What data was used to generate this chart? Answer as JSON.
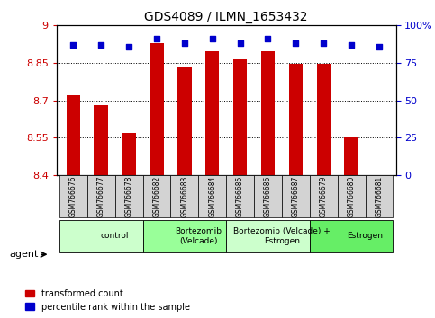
{
  "title": "GDS4089 / ILMN_1653432",
  "samples": [
    "GSM766676",
    "GSM766677",
    "GSM766678",
    "GSM766682",
    "GSM766683",
    "GSM766684",
    "GSM766685",
    "GSM766686",
    "GSM766687",
    "GSM766679",
    "GSM766680",
    "GSM766681"
  ],
  "bar_values": [
    8.72,
    8.68,
    8.57,
    8.93,
    8.83,
    8.895,
    8.865,
    8.895,
    8.845,
    8.845,
    8.555,
    8.4
  ],
  "dot_values": [
    87,
    87,
    86,
    91,
    88,
    91,
    88,
    91,
    88,
    88,
    87,
    86
  ],
  "ylim_left": [
    8.4,
    9.0
  ],
  "ylim_right": [
    0,
    100
  ],
  "yticks_left": [
    8.4,
    8.55,
    8.7,
    8.85,
    9.0
  ],
  "yticks_right": [
    0,
    25,
    50,
    75,
    100
  ],
  "ytick_labels_left": [
    "8.4",
    "8.55",
    "8.7",
    "8.85",
    "9"
  ],
  "ytick_labels_right": [
    "0",
    "25",
    "50",
    "75",
    "100%"
  ],
  "bar_color": "#cc0000",
  "dot_color": "#0000cc",
  "bar_width": 0.5,
  "groups": [
    {
      "label": "control",
      "start": 0,
      "end": 3,
      "color": "#ccffcc"
    },
    {
      "label": "Bortezomib\n(Velcade)",
      "start": 3,
      "end": 6,
      "color": "#99ff99"
    },
    {
      "label": "Bortezomib (Velcade) +\nEstrogen",
      "start": 6,
      "end": 9,
      "color": "#ccffcc"
    },
    {
      "label": "Estrogen",
      "start": 9,
      "end": 12,
      "color": "#66ee66"
    }
  ],
  "agent_label": "agent",
  "legend_bar_label": "transformed count",
  "legend_dot_label": "percentile rank within the sample",
  "background_color": "#ffffff",
  "plot_bg_color": "#ffffff",
  "tick_label_color_left": "#cc0000",
  "tick_label_color_right": "#0000cc"
}
